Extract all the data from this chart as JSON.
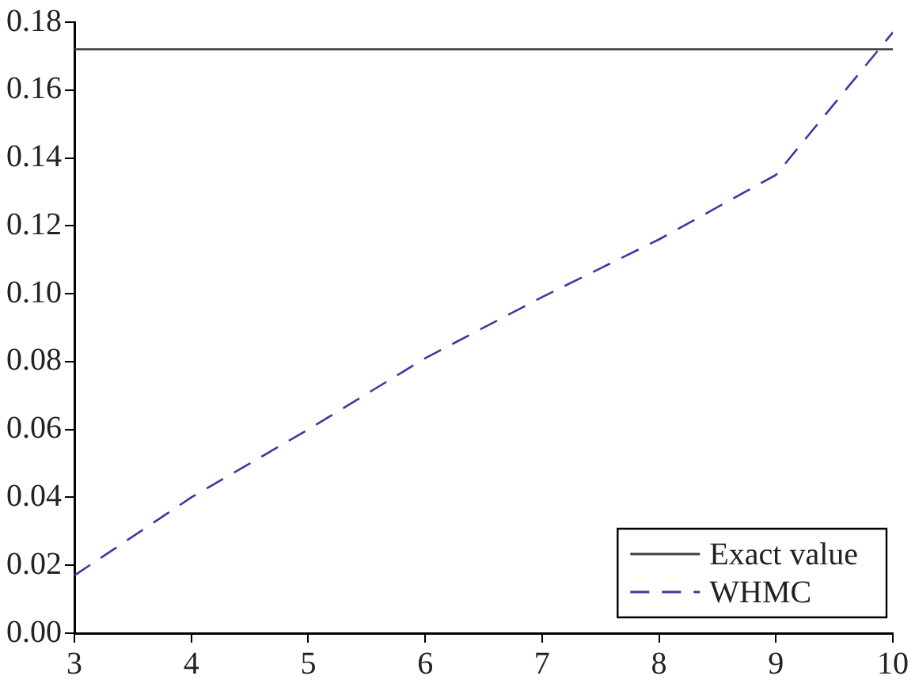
{
  "chart_data": {
    "type": "line",
    "x": [
      3,
      4,
      5,
      6,
      7,
      8,
      9,
      10
    ],
    "series": [
      {
        "name": "Exact value",
        "color": "#404040",
        "line_style": "solid",
        "x": [
          3,
          10
        ],
        "values": [
          0.172,
          0.172
        ]
      },
      {
        "name": "WHMC",
        "color": "#3a3aa0",
        "line_style": "dashed",
        "values": [
          0.017,
          0.04,
          0.06,
          0.081,
          0.099,
          0.116,
          0.135,
          0.177
        ]
      }
    ],
    "xlim": [
      3,
      10
    ],
    "xticks": [
      3,
      4,
      5,
      6,
      7,
      8,
      9,
      10
    ],
    "ylim": [
      0,
      0.18
    ],
    "yticks": [
      {
        "value": 0,
        "label": "0.00"
      },
      {
        "value": 0.02,
        "label": "0.02"
      },
      {
        "value": 0.04,
        "label": "0.04"
      },
      {
        "value": 0.06,
        "label": "0.06"
      },
      {
        "value": 0.08,
        "label": "0.08"
      },
      {
        "value": 0.1,
        "label": "0.10"
      },
      {
        "value": 0.12,
        "label": "0.12"
      },
      {
        "value": 0.14,
        "label": "0.14"
      },
      {
        "value": 0.16,
        "label": "0.16"
      },
      {
        "value": 0.18,
        "label": "0.18"
      }
    ],
    "grid": false,
    "legend": "bottom right",
    "marker": "none"
  }
}
